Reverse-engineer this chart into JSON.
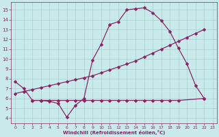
{
  "xlabel": "Windchill (Refroidissement éolien,°C)",
  "bg_color": "#c8eaea",
  "grid_color": "#aacccc",
  "line_color": "#882266",
  "xlim": [
    -0.5,
    23.5
  ],
  "ylim": [
    3.5,
    15.8
  ],
  "xticks": [
    0,
    1,
    2,
    3,
    4,
    5,
    6,
    7,
    8,
    9,
    10,
    11,
    12,
    13,
    14,
    15,
    16,
    17,
    18,
    19,
    20,
    21,
    22,
    23
  ],
  "yticks": [
    4,
    5,
    6,
    7,
    8,
    9,
    10,
    11,
    12,
    13,
    14,
    15
  ],
  "line1_x": [
    0,
    1,
    2,
    3,
    4,
    5,
    6,
    7,
    8,
    9,
    10,
    11,
    12,
    13,
    14,
    15,
    16,
    17,
    18,
    19,
    20,
    21,
    22
  ],
  "line1_y": [
    7.7,
    7.0,
    5.8,
    5.8,
    5.7,
    5.5,
    4.1,
    5.3,
    6.0,
    9.9,
    11.5,
    13.5,
    13.8,
    15.0,
    15.1,
    15.2,
    14.7,
    13.9,
    12.8,
    11.1,
    9.5,
    7.3,
    6.0
  ],
  "line2_x": [
    2,
    3,
    4,
    5,
    6,
    7,
    8,
    9,
    10,
    11,
    12,
    13,
    14,
    15,
    16,
    17,
    18,
    19,
    22
  ],
  "line2_y": [
    5.8,
    5.8,
    5.8,
    5.8,
    5.8,
    5.8,
    5.8,
    5.8,
    5.8,
    5.8,
    5.8,
    5.8,
    5.8,
    5.8,
    5.8,
    5.8,
    5.8,
    5.8,
    6.0
  ],
  "line3_x": [
    0,
    1,
    2,
    3,
    4,
    5,
    6,
    7,
    8,
    9,
    10,
    11,
    12,
    13,
    14,
    15,
    16,
    17,
    18,
    19,
    20,
    21,
    22
  ],
  "line3_y": [
    6.5,
    6.7,
    6.9,
    7.1,
    7.3,
    7.5,
    7.7,
    7.9,
    8.1,
    8.3,
    8.6,
    8.9,
    9.2,
    9.5,
    9.8,
    10.2,
    10.6,
    11.0,
    11.4,
    11.8,
    12.2,
    12.6,
    13.0
  ],
  "markersize": 2.5
}
